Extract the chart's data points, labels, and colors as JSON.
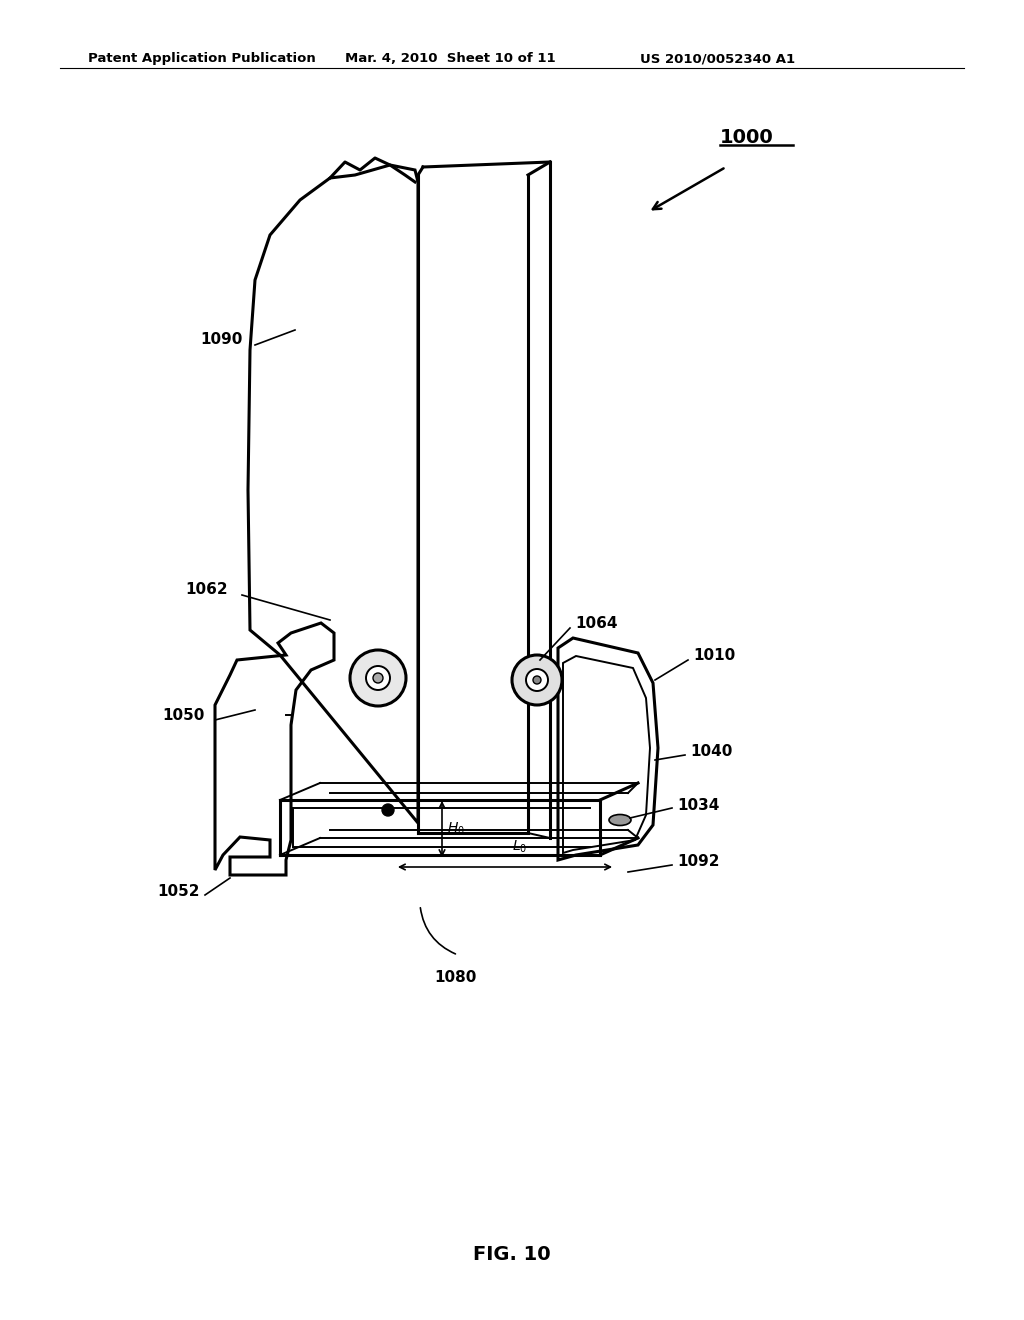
{
  "bg_color": "#ffffff",
  "header_text": "Patent Application Publication",
  "header_date": "Mar. 4, 2010  Sheet 10 of 11",
  "header_patent": "US 2010/0052340 A1",
  "fig_label": "FIG. 10",
  "lw_main": 2.2,
  "lw_thin": 1.4,
  "lw_med": 1.8
}
